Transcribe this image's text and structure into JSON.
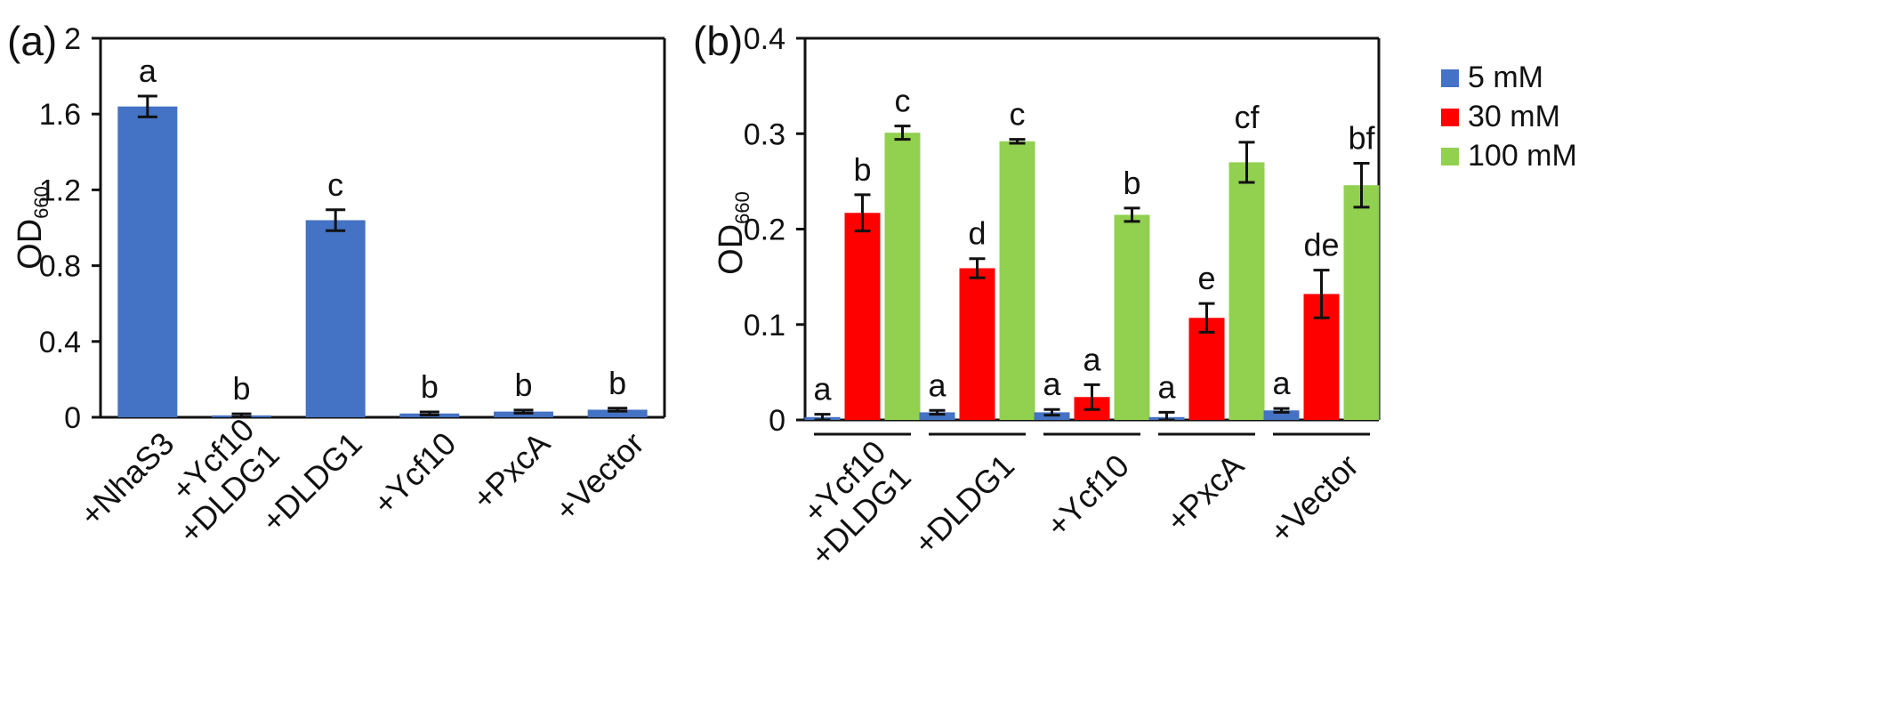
{
  "chart_data": [
    {
      "panel": "(a)",
      "type": "bar",
      "ylabel": "OD",
      "ylabel_subscript": "660",
      "ylim": [
        0,
        2
      ],
      "yticks": [
        "0",
        "0.4",
        "0.8",
        "1.2",
        "1.6",
        "2"
      ],
      "ytick_values": [
        0,
        0.4,
        0.8,
        1.2,
        1.6,
        2
      ],
      "categories": [
        {
          "lines": [
            "+NhaS3"
          ]
        },
        {
          "lines": [
            "+Ycf10",
            "+DLDG1"
          ]
        },
        {
          "lines": [
            "+DLDG1"
          ]
        },
        {
          "lines": [
            "+Ycf10"
          ]
        },
        {
          "lines": [
            "+PxcA"
          ]
        },
        {
          "lines": [
            "+Vector"
          ]
        }
      ],
      "series": [
        {
          "color": "#4472c4",
          "values": [
            1.64,
            0.01,
            1.04,
            0.02,
            0.03,
            0.04
          ],
          "errors": [
            0.055,
            0.008,
            0.055,
            0.008,
            0.008,
            0.008
          ],
          "letters": [
            "a",
            "b",
            "c",
            "b",
            "b",
            "b"
          ]
        }
      ],
      "grid": false,
      "legend": null
    },
    {
      "panel": "(b)",
      "type": "bar",
      "ylabel": "OD",
      "ylabel_subscript": "660",
      "ylim": [
        0,
        0.4
      ],
      "yticks": [
        "0",
        "0.1",
        "0.2",
        "0.3",
        "0.4"
      ],
      "ytick_values": [
        0,
        0.1,
        0.2,
        0.3,
        0.4
      ],
      "categories": [
        {
          "lines": [
            "+Ycf10",
            "+DLDG1"
          ]
        },
        {
          "lines": [
            "+DLDG1"
          ]
        },
        {
          "lines": [
            "+Ycf10"
          ]
        },
        {
          "lines": [
            "+PxcA"
          ]
        },
        {
          "lines": [
            "+Vector"
          ]
        }
      ],
      "series": [
        {
          "name": "5 mM",
          "color": "#4472c4",
          "values": [
            0.003,
            0.008,
            0.008,
            0.003,
            0.01
          ],
          "errors": [
            0.003,
            0.002,
            0.003,
            0.005,
            0.002
          ],
          "letters": [
            "a",
            "a",
            "a",
            "a",
            "a"
          ]
        },
        {
          "name": "30 mM",
          "color": "#ff0000",
          "values": [
            0.217,
            0.159,
            0.024,
            0.107,
            0.132
          ],
          "errors": [
            0.019,
            0.01,
            0.013,
            0.015,
            0.025
          ],
          "letters": [
            "b",
            "d",
            "a",
            "e",
            "de"
          ]
        },
        {
          "name": "100 mM",
          "color": "#92d050",
          "values": [
            0.301,
            0.292,
            0.215,
            0.27,
            0.246
          ],
          "errors": [
            0.007,
            0.002,
            0.007,
            0.021,
            0.023
          ],
          "letters": [
            "c",
            "c",
            "b",
            "cf",
            "bf"
          ]
        }
      ],
      "grid": false,
      "legend": "top-center"
    }
  ]
}
